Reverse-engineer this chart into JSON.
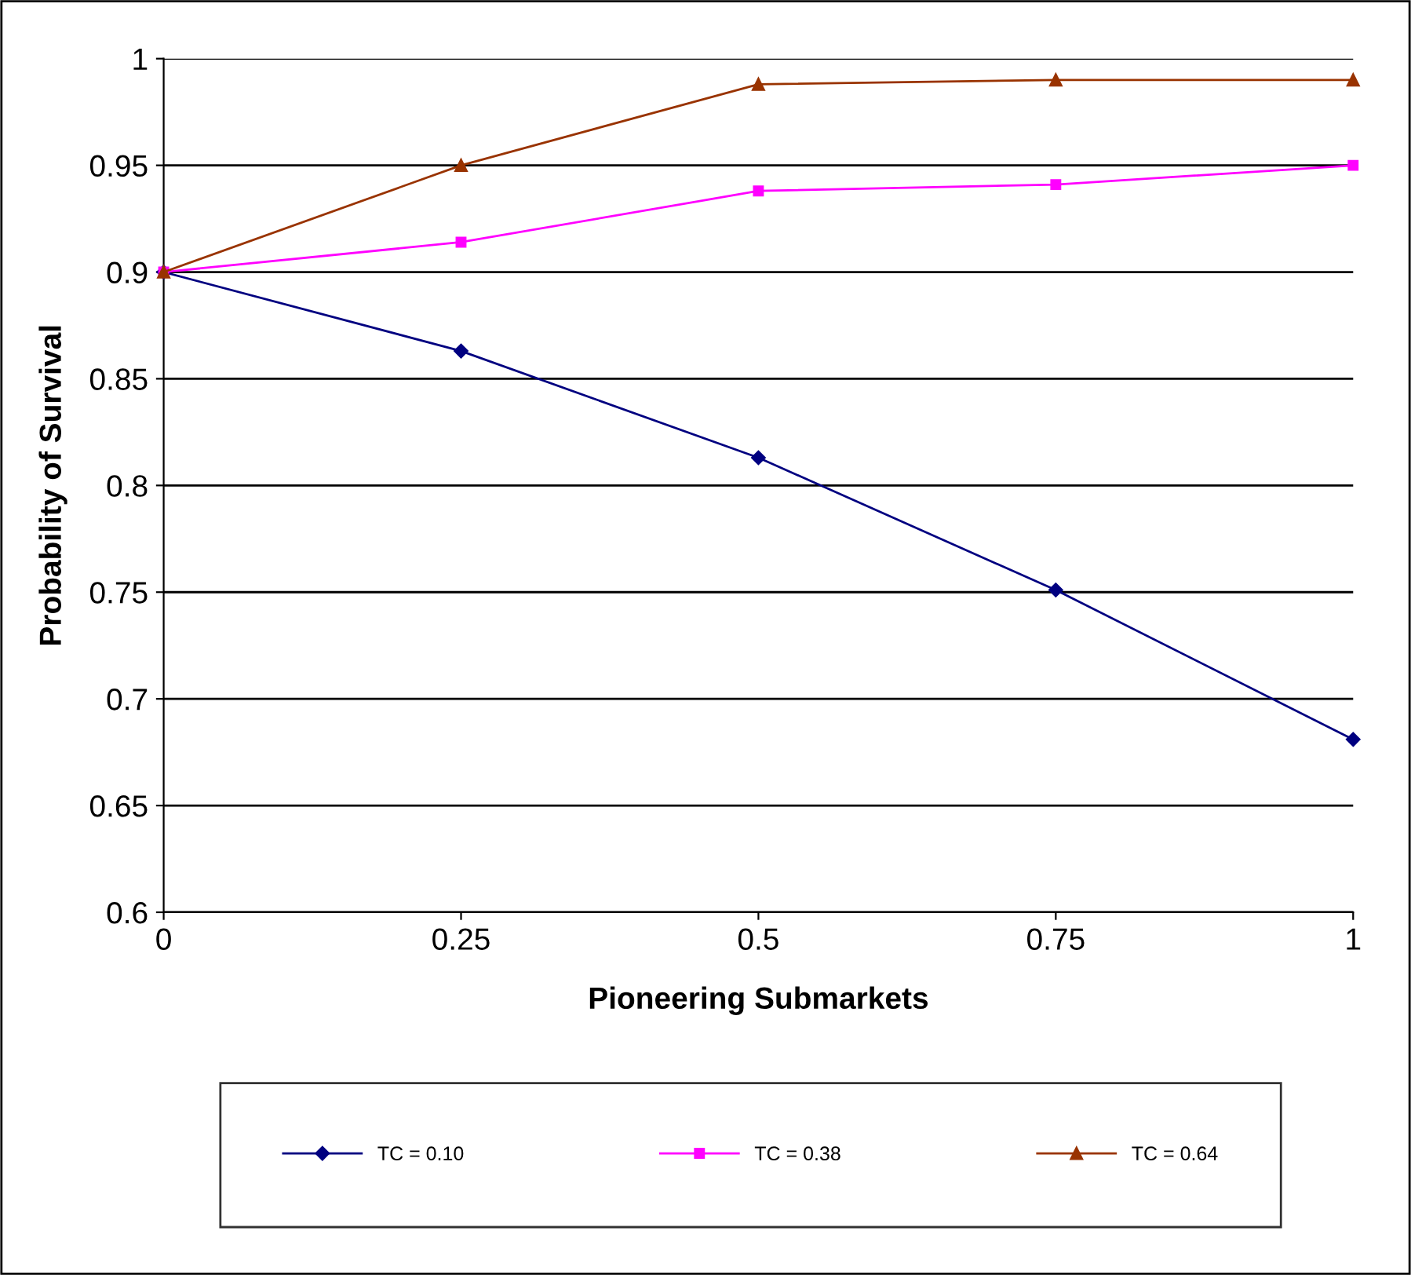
{
  "chart_data": {
    "type": "line",
    "xlabel": "Pioneering Submarkets",
    "ylabel": "Probability of Survival",
    "x": [
      0,
      0.25,
      0.5,
      0.75,
      1
    ],
    "series": [
      {
        "name": "TC = 0.10",
        "color": "#000080",
        "marker": "diamond",
        "values": [
          0.9,
          0.863,
          0.813,
          0.751,
          0.681
        ]
      },
      {
        "name": "TC = 0.38",
        "color": "#ff00ff",
        "marker": "square",
        "values": [
          0.9,
          0.914,
          0.938,
          0.941,
          0.95
        ]
      },
      {
        "name": "TC = 0.64",
        "color": "#993300",
        "marker": "triangle",
        "values": [
          0.9,
          0.95,
          0.988,
          0.99,
          0.99
        ]
      }
    ],
    "xlim": [
      0,
      1
    ],
    "xticks": [
      0,
      0.25,
      0.5,
      0.75,
      1
    ],
    "ylim": [
      0.6,
      1
    ],
    "yticks": [
      0.6,
      0.65,
      0.7,
      0.75,
      0.8,
      0.85,
      0.9,
      0.95,
      1
    ],
    "grid": "y",
    "legend": "bottom",
    "line_style": "solid"
  }
}
